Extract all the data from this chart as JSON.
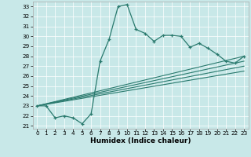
{
  "xlabel": "Humidex (Indice chaleur)",
  "bg_color": "#c8e8e8",
  "line_color": "#2a7a6e",
  "xlim": [
    -0.5,
    23.5
  ],
  "ylim": [
    20.7,
    33.5
  ],
  "yticks": [
    21,
    22,
    23,
    24,
    25,
    26,
    27,
    28,
    29,
    30,
    31,
    32,
    33
  ],
  "xticks": [
    0,
    1,
    2,
    3,
    4,
    5,
    6,
    7,
    8,
    9,
    10,
    11,
    12,
    13,
    14,
    15,
    16,
    17,
    18,
    19,
    20,
    21,
    22,
    23
  ],
  "main_line_x": [
    0,
    1,
    2,
    3,
    4,
    5,
    6,
    7,
    8,
    9,
    10,
    11,
    12,
    13,
    14,
    15,
    16,
    17,
    18,
    19,
    20,
    21,
    22,
    23
  ],
  "main_line_y": [
    23.0,
    23.0,
    21.8,
    22.0,
    21.8,
    21.2,
    22.2,
    27.5,
    29.7,
    33.0,
    33.2,
    30.7,
    30.3,
    29.5,
    30.1,
    30.1,
    30.0,
    28.9,
    29.3,
    28.8,
    28.2,
    27.5,
    27.3,
    28.0
  ],
  "diag_lines": [
    {
      "x": [
        0,
        23
      ],
      "y": [
        23.0,
        28.0
      ]
    },
    {
      "x": [
        0,
        23
      ],
      "y": [
        23.0,
        27.5
      ]
    },
    {
      "x": [
        0,
        23
      ],
      "y": [
        23.0,
        27.0
      ]
    },
    {
      "x": [
        0,
        23
      ],
      "y": [
        23.0,
        26.5
      ]
    }
  ],
  "grid_color": "#ffffff",
  "tick_fontsize": 5.2,
  "xlabel_fontsize": 6.5
}
